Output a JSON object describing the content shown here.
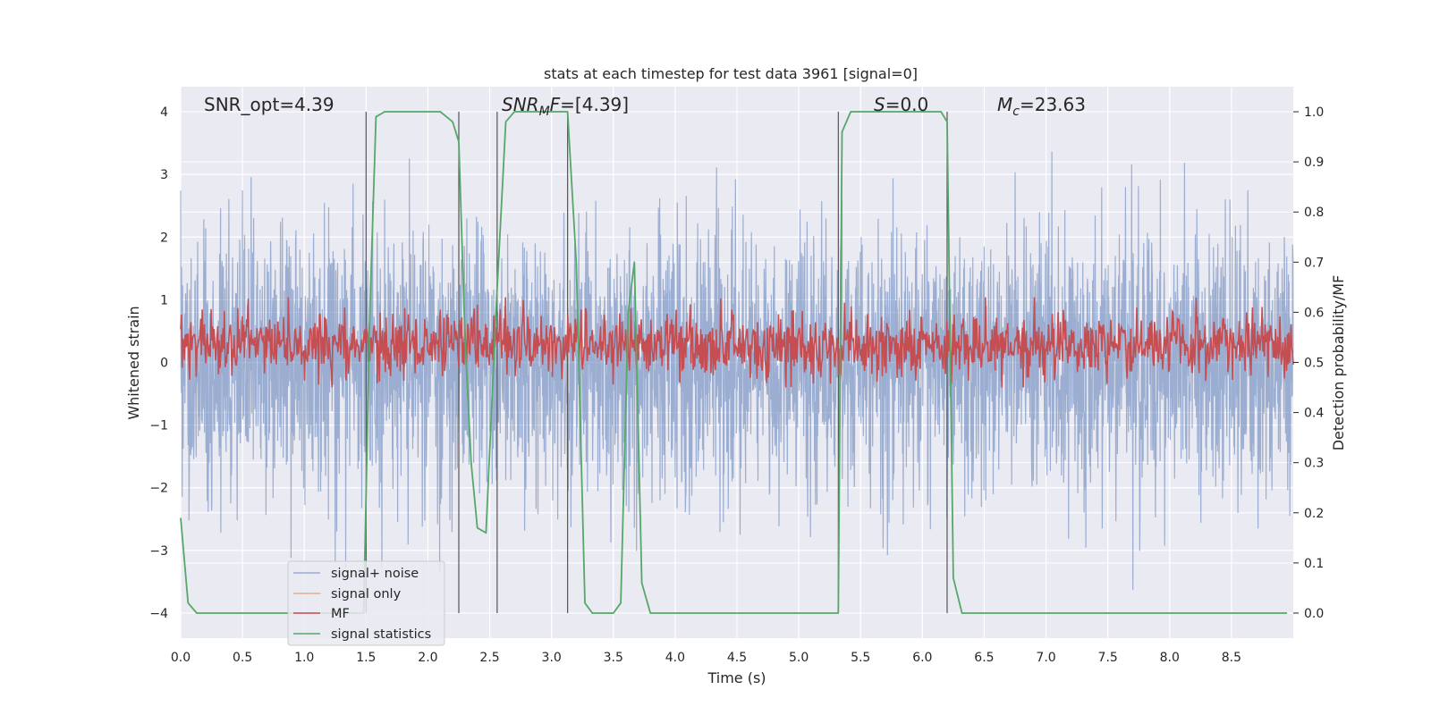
{
  "chart_data": {
    "type": "line",
    "title": "stats at each timestep for test data 3961 [signal=0]",
    "xlabel": "Time (s)",
    "ylabel": "Whitened strain",
    "y2label": "Detection probability/MF",
    "xlim": [
      0.0,
      9.0
    ],
    "ylim": [
      -4.4,
      4.4
    ],
    "y2lim": [
      -0.05,
      1.05
    ],
    "xticks": [
      0.0,
      0.5,
      1.0,
      1.5,
      2.0,
      2.5,
      3.0,
      3.5,
      4.0,
      4.5,
      5.0,
      5.5,
      6.0,
      6.5,
      7.0,
      7.5,
      8.0,
      8.5
    ],
    "xtick_labels": [
      "0.0",
      "0.5",
      "1.0",
      "1.5",
      "2.0",
      "2.5",
      "3.0",
      "3.5",
      "4.0",
      "4.5",
      "5.0",
      "5.5",
      "6.0",
      "6.5",
      "7.0",
      "7.5",
      "8.0",
      "8.5"
    ],
    "yticks": [
      4,
      3,
      2,
      1,
      0,
      -1,
      -2,
      -3,
      -4
    ],
    "ytick_labels": [
      "4",
      "3",
      "2",
      "1",
      "0",
      "−1",
      "−2",
      "−3",
      "−4"
    ],
    "y2ticks": [
      1.0,
      0.9,
      0.8,
      0.7,
      0.6,
      0.5,
      0.4,
      0.3,
      0.2,
      0.1,
      0.0
    ],
    "y2tick_labels": [
      "1.0",
      "0.9",
      "0.8",
      "0.7",
      "0.6",
      "0.5",
      "0.4",
      "0.3",
      "0.2",
      "0.1",
      "0.0"
    ],
    "annotations": {
      "snr_opt": "SNR_opt=4.39",
      "snr_mf_italic": "SNR",
      "snr_mf_sub": "M",
      "snr_mf_italic2": "F",
      "snr_mf_rest": "=[4.39]",
      "s_italic": "S",
      "s_rest": "=0.0",
      "mc_italic": "M",
      "mc_sub": "c",
      "mc_rest": "=23.63"
    },
    "vlines": [
      1.5,
      2.25,
      2.56,
      3.13,
      5.32,
      6.2
    ],
    "series": [
      {
        "name": "signal+ noise",
        "color": "#4c72b0",
        "axis": "left",
        "description": "whitened strain noise, roughly symmetric about 0 with peaks up to about 4 and down to about -4"
      },
      {
        "name": "signal only",
        "color": "#dd8452",
        "axis": "left"
      },
      {
        "name": "MF",
        "color": "#c44e52",
        "axis": "right",
        "description": "matched-filter output fluctuating around 0.53 on the right axis"
      },
      {
        "name": "signal statistics",
        "color": "#55a868",
        "axis": "right",
        "points": [
          [
            0.0,
            0.19
          ],
          [
            0.06,
            0.02
          ],
          [
            0.13,
            0.0
          ],
          [
            1.48,
            0.0
          ],
          [
            1.53,
            0.6
          ],
          [
            1.58,
            0.99
          ],
          [
            1.65,
            1.0
          ],
          [
            2.1,
            1.0
          ],
          [
            2.2,
            0.98
          ],
          [
            2.25,
            0.94
          ],
          [
            2.3,
            0.55
          ],
          [
            2.35,
            0.3
          ],
          [
            2.4,
            0.17
          ],
          [
            2.47,
            0.16
          ],
          [
            2.55,
            0.6
          ],
          [
            2.63,
            0.98
          ],
          [
            2.7,
            1.0
          ],
          [
            3.13,
            1.0
          ],
          [
            3.2,
            0.7
          ],
          [
            3.27,
            0.02
          ],
          [
            3.33,
            0.0
          ],
          [
            3.5,
            0.0
          ],
          [
            3.56,
            0.02
          ],
          [
            3.62,
            0.6
          ],
          [
            3.67,
            0.7
          ],
          [
            3.73,
            0.06
          ],
          [
            3.8,
            0.0
          ],
          [
            5.32,
            0.0
          ],
          [
            5.35,
            0.96
          ],
          [
            5.42,
            1.0
          ],
          [
            6.15,
            1.0
          ],
          [
            6.2,
            0.98
          ],
          [
            6.25,
            0.07
          ],
          [
            6.32,
            0.0
          ],
          [
            8.95,
            0.0
          ]
        ]
      }
    ],
    "legend": {
      "position": "lower-left",
      "entries": [
        "signal+ noise",
        "signal only",
        "MF",
        "signal statistics"
      ]
    }
  }
}
